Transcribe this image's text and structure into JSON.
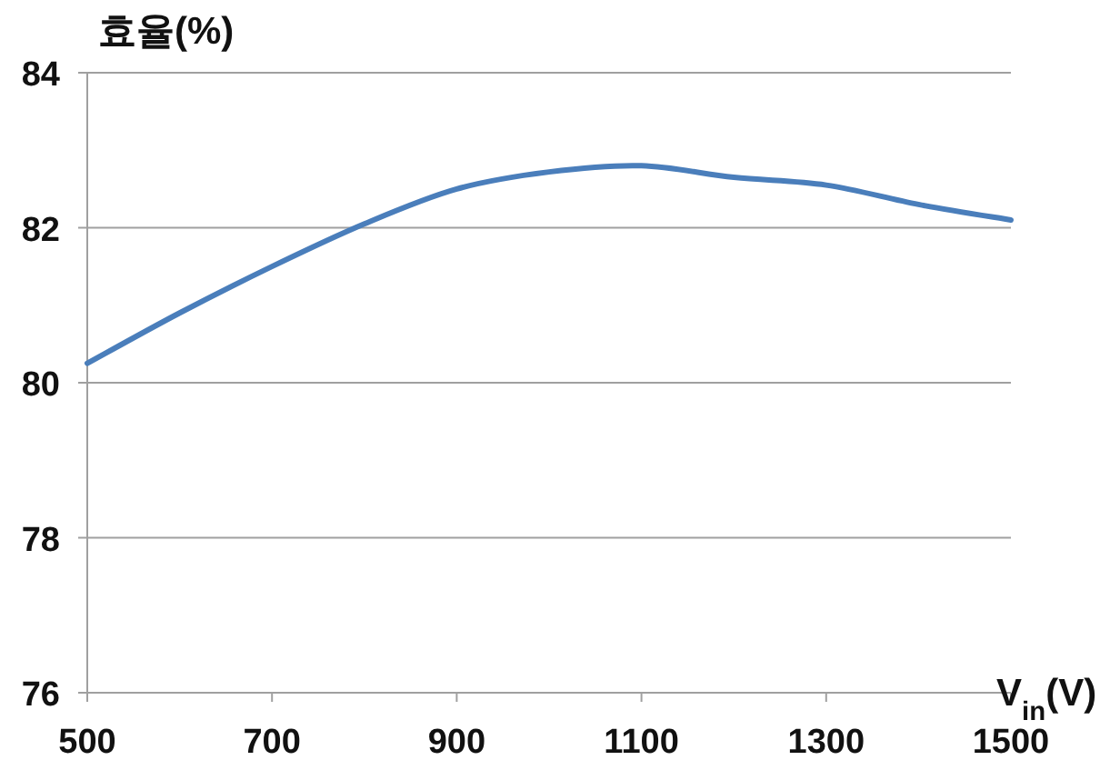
{
  "chart_data": {
    "type": "line",
    "ylabel": "효율(%)",
    "xlabel": "V$_{in}$(V)",
    "x": [
      500,
      600,
      700,
      800,
      900,
      1000,
      1100,
      1200,
      1300,
      1400,
      1500
    ],
    "series": [
      {
        "color": "#4a7ebb",
        "values": [
          80.25,
          80.9,
          81.5,
          82.05,
          82.5,
          82.72,
          82.8,
          82.65,
          82.55,
          82.3,
          82.1
        ]
      }
    ],
    "xlim": [
      500,
      1500
    ],
    "xticks": [
      500,
      700,
      900,
      1100,
      1300,
      1500
    ],
    "ylim": [
      76,
      84
    ],
    "yticks": [
      76,
      78,
      80,
      82,
      84
    ],
    "grid": "y",
    "marker": "none",
    "line_style": "solid"
  }
}
